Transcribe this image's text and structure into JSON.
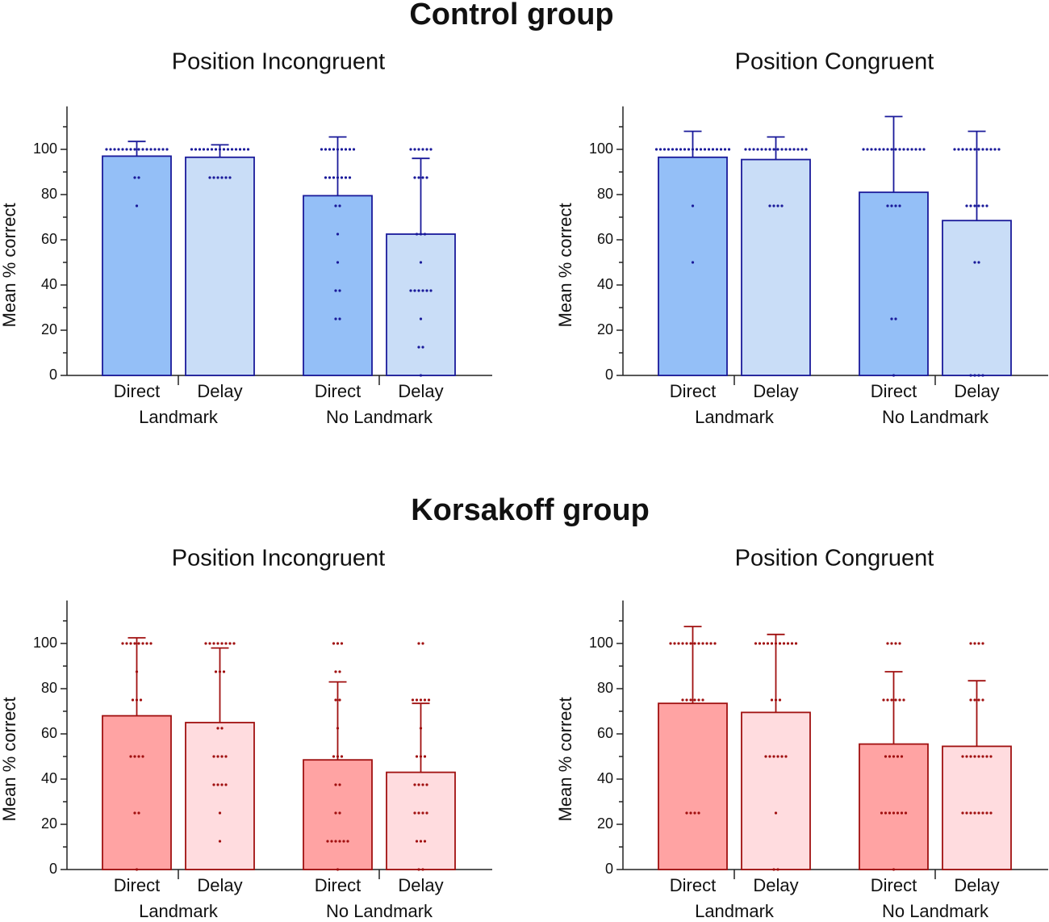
{
  "headings": [
    "Control group",
    "Korsakoff group"
  ],
  "chart_data": [
    {
      "type": "bar",
      "title": "Position Incongruent",
      "ylabel": "Mean % correct",
      "categories": [
        "Direct",
        "Delay",
        "Direct",
        "Delay"
      ],
      "groups": [
        "Landmark",
        "No Landmark"
      ],
      "values": [
        97,
        96.5,
        79.5,
        62.5
      ],
      "errors": [
        6.5,
        5.5,
        26,
        33.5
      ],
      "colors": [
        "#94bff7",
        "#c9ddf7",
        "#94bff7",
        "#c9ddf7"
      ],
      "edge_color": "#1a1a9a",
      "points": [
        [
          100,
          100,
          100,
          100,
          100,
          100,
          100,
          100,
          100,
          100,
          100,
          100,
          100,
          100,
          100,
          100,
          87.5,
          87.5,
          75
        ],
        [
          100,
          100,
          100,
          100,
          100,
          100,
          100,
          100,
          100,
          100,
          100,
          100,
          100,
          100,
          100,
          87.5,
          87.5,
          87.5,
          87.5,
          87.5,
          87.5
        ],
        [
          100,
          100,
          100,
          100,
          100,
          100,
          100,
          100,
          100,
          87.5,
          87.5,
          87.5,
          87.5,
          87.5,
          87.5,
          87.5,
          75,
          75,
          62.5,
          50,
          37.5,
          37.5,
          25,
          25
        ],
        [
          100,
          100,
          100,
          100,
          100,
          100,
          87.5,
          87.5,
          87.5,
          87.5,
          62.5,
          62.5,
          62.5,
          50,
          37.5,
          37.5,
          37.5,
          37.5,
          37.5,
          37.5,
          25,
          12.5,
          12.5,
          0
        ]
      ],
      "ylim": [
        0,
        119
      ],
      "yticks": [
        0,
        20,
        40,
        60,
        80,
        100
      ],
      "minor_yticks": [
        10,
        30,
        50,
        70,
        90,
        110
      ]
    },
    {
      "type": "bar",
      "title": "Position Congruent",
      "ylabel": "Mean % correct",
      "categories": [
        "Direct",
        "Delay",
        "Direct",
        "Delay"
      ],
      "groups": [
        "Landmark",
        "No Landmark"
      ],
      "values": [
        96.5,
        95.5,
        81,
        68.5
      ],
      "errors": [
        11.5,
        10,
        33.5,
        39.5
      ],
      "colors": [
        "#94bff7",
        "#c9ddf7",
        "#94bff7",
        "#c9ddf7"
      ],
      "edge_color": "#1a1a9a",
      "points": [
        [
          100,
          100,
          100,
          100,
          100,
          100,
          100,
          100,
          100,
          100,
          100,
          100,
          100,
          100,
          100,
          100,
          100,
          100,
          100,
          75,
          50
        ],
        [
          100,
          100,
          100,
          100,
          100,
          100,
          100,
          100,
          100,
          100,
          100,
          100,
          100,
          100,
          100,
          100,
          75,
          75,
          75,
          75
        ],
        [
          100,
          100,
          100,
          100,
          100,
          100,
          100,
          100,
          100,
          100,
          100,
          100,
          100,
          100,
          100,
          100,
          75,
          75,
          75,
          75,
          25,
          25,
          0
        ],
        [
          100,
          100,
          100,
          100,
          100,
          100,
          100,
          100,
          100,
          100,
          100,
          100,
          75,
          75,
          75,
          75,
          75,
          75,
          50,
          50,
          0,
          0,
          0,
          0
        ]
      ],
      "ylim": [
        0,
        119
      ],
      "yticks": [
        0,
        20,
        40,
        60,
        80,
        100
      ],
      "minor_yticks": [
        10,
        30,
        50,
        70,
        90,
        110
      ]
    },
    {
      "type": "bar",
      "title": "Position Incongruent",
      "ylabel": "Mean % correct",
      "categories": [
        "Direct",
        "Delay",
        "Direct",
        "Delay"
      ],
      "groups": [
        "Landmark",
        "No Landmark"
      ],
      "values": [
        68,
        65,
        48.5,
        43
      ],
      "errors": [
        34.5,
        33,
        34.5,
        30.5
      ],
      "colors": [
        "#ffa3a3",
        "#ffdcdf",
        "#ffa3a3",
        "#ffdcdf"
      ],
      "edge_color": "#a01010",
      "points": [
        [
          100,
          100,
          100,
          100,
          100,
          100,
          100,
          100,
          87.5,
          75,
          75,
          75,
          50,
          50,
          50,
          50,
          25,
          25,
          0
        ],
        [
          100,
          100,
          100,
          100,
          100,
          100,
          100,
          100,
          87.5,
          87.5,
          87.5,
          62.5,
          62.5,
          50,
          50,
          50,
          50,
          37.5,
          37.5,
          37.5,
          37.5,
          25,
          12.5
        ],
        [
          100,
          100,
          100,
          87.5,
          87.5,
          75,
          75,
          62.5,
          50,
          50,
          50,
          37.5,
          37.5,
          25,
          25,
          12.5,
          12.5,
          12.5,
          12.5,
          12.5,
          12.5,
          0
        ],
        [
          100,
          100,
          75,
          75,
          75,
          75,
          75,
          62.5,
          50,
          50,
          50,
          37.5,
          37.5,
          37.5,
          37.5,
          25,
          25,
          25,
          25,
          12.5,
          12.5,
          12.5,
          0,
          0
        ]
      ],
      "ylim": [
        0,
        119
      ],
      "yticks": [
        0,
        20,
        40,
        60,
        80,
        100
      ],
      "minor_yticks": [
        10,
        30,
        50,
        70,
        90,
        110
      ]
    },
    {
      "type": "bar",
      "title": "Position Congruent",
      "ylabel": "Mean % correct",
      "categories": [
        "Direct",
        "Delay",
        "Direct",
        "Delay"
      ],
      "groups": [
        "Landmark",
        "No Landmark"
      ],
      "values": [
        73.5,
        69.5,
        55.5,
        54.5
      ],
      "errors": [
        34,
        34.5,
        32,
        29
      ],
      "colors": [
        "#ffa3a3",
        "#ffdcdf",
        "#ffa3a3",
        "#ffdcdf"
      ],
      "edge_color": "#a01010",
      "points": [
        [
          100,
          100,
          100,
          100,
          100,
          100,
          100,
          100,
          100,
          100,
          100,
          100,
          75,
          75,
          75,
          75,
          75,
          75,
          25,
          25,
          25,
          25
        ],
        [
          100,
          100,
          100,
          100,
          100,
          100,
          100,
          100,
          100,
          100,
          100,
          75,
          75,
          75,
          50,
          50,
          50,
          50,
          50,
          50,
          25,
          0,
          0
        ],
        [
          100,
          100,
          100,
          100,
          75,
          75,
          75,
          75,
          75,
          75,
          50,
          50,
          50,
          50,
          50,
          25,
          25,
          25,
          25,
          25,
          25,
          25,
          0
        ],
        [
          100,
          100,
          100,
          100,
          75,
          75,
          75,
          75,
          50,
          50,
          50,
          50,
          50,
          50,
          50,
          50,
          25,
          25,
          25,
          25,
          25,
          25,
          25,
          25
        ]
      ],
      "ylim": [
        0,
        119
      ],
      "yticks": [
        0,
        20,
        40,
        60,
        80,
        100
      ],
      "minor_yticks": [
        10,
        30,
        50,
        70,
        90,
        110
      ]
    }
  ]
}
